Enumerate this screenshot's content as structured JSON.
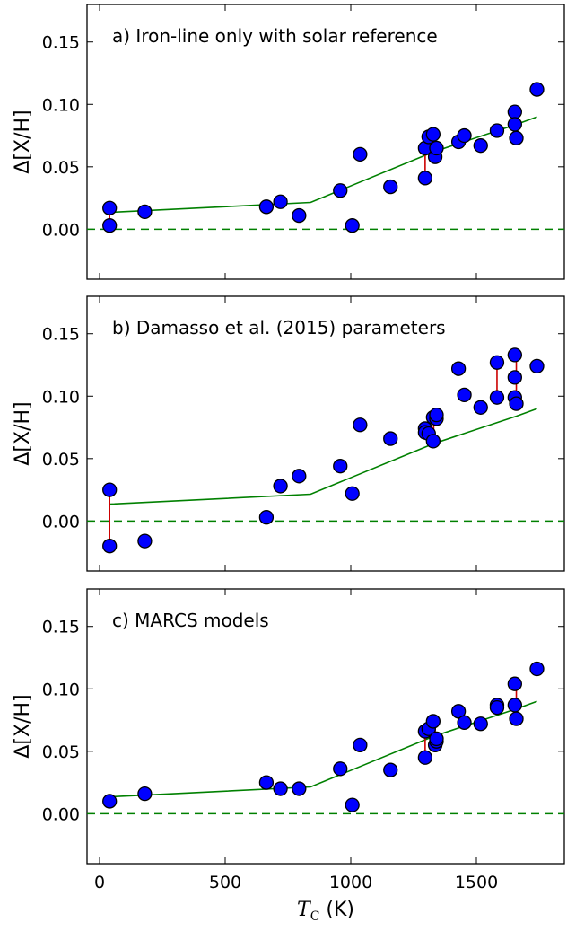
{
  "figure": {
    "xlabel_sym": "T",
    "xlabel_sub": "C",
    "xlabel_unit": " (K)",
    "ylabel": "Δ[X/H]"
  },
  "colors": {
    "point_fill": "#0000ff",
    "point_edge": "#000000",
    "fit_line": "#008000",
    "zero_line": "#008000",
    "connector": "#cc0000"
  },
  "chart_data": [
    {
      "type": "scatter",
      "title": "a) Iron-line only with solar reference",
      "xlabel": "",
      "ylabel": "Δ[X/H]",
      "xlim": [
        -50,
        1850
      ],
      "ylim": [
        -0.04,
        0.18
      ],
      "xticks": [
        0,
        500,
        1000,
        1500
      ],
      "yticks": [
        0.0,
        0.05,
        0.1,
        0.15
      ],
      "ytick_labels": [
        "0.00",
        "0.05",
        "0.10",
        "0.15"
      ],
      "grid": false,
      "points": [
        [
          40,
          0.017
        ],
        [
          40,
          0.003
        ],
        [
          180,
          0.014
        ],
        [
          664,
          0.018
        ],
        [
          720,
          0.022
        ],
        [
          794,
          0.011
        ],
        [
          958,
          0.031
        ],
        [
          1006,
          0.003
        ],
        [
          1037,
          0.06
        ],
        [
          1158,
          0.034
        ],
        [
          1296,
          0.065
        ],
        [
          1296,
          0.041
        ],
        [
          1310,
          0.074
        ],
        [
          1328,
          0.076
        ],
        [
          1336,
          0.058
        ],
        [
          1341,
          0.065
        ],
        [
          1429,
          0.07
        ],
        [
          1452,
          0.075
        ],
        [
          1517,
          0.067
        ],
        [
          1582,
          0.079
        ],
        [
          1653,
          0.094
        ],
        [
          1653,
          0.084
        ],
        [
          1659,
          0.073
        ],
        [
          1741,
          0.112
        ]
      ],
      "connectors": [
        [
          40,
          0.017,
          0.003
        ],
        [
          1296,
          0.065,
          0.041
        ],
        [
          1336,
          0.076,
          0.058
        ],
        [
          1659,
          0.094,
          0.073
        ]
      ],
      "fit": [
        [
          40,
          0.0135
        ],
        [
          840,
          0.0215
        ],
        [
          1330,
          0.062
        ],
        [
          1660,
          0.084
        ],
        [
          1741,
          0.09
        ]
      ],
      "reference_line": 0.0
    },
    {
      "type": "scatter",
      "title": "b) Damasso et al. (2015) parameters",
      "xlabel": "",
      "ylabel": "Δ[X/H]",
      "xlim": [
        -50,
        1850
      ],
      "ylim": [
        -0.04,
        0.18
      ],
      "xticks": [
        0,
        500,
        1000,
        1500
      ],
      "yticks": [
        0.0,
        0.05,
        0.1,
        0.15
      ],
      "ytick_labels": [
        "0.00",
        "0.05",
        "0.10",
        "0.15"
      ],
      "grid": false,
      "points": [
        [
          40,
          0.025
        ],
        [
          40,
          -0.02
        ],
        [
          180,
          -0.016
        ],
        [
          664,
          0.003
        ],
        [
          720,
          0.028
        ],
        [
          794,
          0.036
        ],
        [
          958,
          0.044
        ],
        [
          1006,
          0.022
        ],
        [
          1037,
          0.077
        ],
        [
          1158,
          0.066
        ],
        [
          1296,
          0.074
        ],
        [
          1296,
          0.071
        ],
        [
          1310,
          0.07
        ],
        [
          1328,
          0.083
        ],
        [
          1328,
          0.064
        ],
        [
          1341,
          0.082
        ],
        [
          1341,
          0.085
        ],
        [
          1429,
          0.122
        ],
        [
          1452,
          0.101
        ],
        [
          1517,
          0.091
        ],
        [
          1582,
          0.127
        ],
        [
          1582,
          0.099
        ],
        [
          1653,
          0.133
        ],
        [
          1653,
          0.115
        ],
        [
          1653,
          0.099
        ],
        [
          1659,
          0.094
        ],
        [
          1741,
          0.124
        ]
      ],
      "connectors": [
        [
          40,
          0.025,
          -0.02
        ],
        [
          1330,
          0.083,
          0.064
        ],
        [
          1582,
          0.127,
          0.099
        ],
        [
          1659,
          0.133,
          0.094
        ]
      ],
      "fit": [
        [
          40,
          0.0135
        ],
        [
          840,
          0.0215
        ],
        [
          1330,
          0.062
        ],
        [
          1660,
          0.084
        ],
        [
          1741,
          0.09
        ]
      ],
      "reference_line": 0.0
    },
    {
      "type": "scatter",
      "title": "c) MARCS models",
      "xlabel": "T_C (K)",
      "ylabel": "Δ[X/H]",
      "xlim": [
        -50,
        1850
      ],
      "ylim": [
        -0.04,
        0.18
      ],
      "xticks": [
        0,
        500,
        1000,
        1500
      ],
      "xtick_labels": [
        "0",
        "500",
        "1000",
        "1500"
      ],
      "yticks": [
        0.0,
        0.05,
        0.1,
        0.15
      ],
      "ytick_labels": [
        "0.00",
        "0.05",
        "0.10",
        "0.15"
      ],
      "grid": false,
      "points": [
        [
          40,
          0.01
        ],
        [
          180,
          0.016
        ],
        [
          664,
          0.025
        ],
        [
          720,
          0.02
        ],
        [
          794,
          0.02
        ],
        [
          958,
          0.036
        ],
        [
          1006,
          0.007
        ],
        [
          1037,
          0.055
        ],
        [
          1158,
          0.035
        ],
        [
          1296,
          0.066
        ],
        [
          1296,
          0.045
        ],
        [
          1310,
          0.068
        ],
        [
          1328,
          0.074
        ],
        [
          1336,
          0.055
        ],
        [
          1341,
          0.058
        ],
        [
          1341,
          0.06
        ],
        [
          1429,
          0.082
        ],
        [
          1452,
          0.073
        ],
        [
          1517,
          0.072
        ],
        [
          1582,
          0.087
        ],
        [
          1582,
          0.085
        ],
        [
          1653,
          0.104
        ],
        [
          1653,
          0.087
        ],
        [
          1659,
          0.076
        ],
        [
          1741,
          0.116
        ]
      ],
      "connectors": [
        [
          1296,
          0.066,
          0.045
        ],
        [
          1336,
          0.074,
          0.055
        ],
        [
          1659,
          0.104,
          0.076
        ]
      ],
      "fit": [
        [
          40,
          0.0135
        ],
        [
          840,
          0.0215
        ],
        [
          1330,
          0.062
        ],
        [
          1660,
          0.084
        ],
        [
          1741,
          0.09
        ]
      ],
      "reference_line": 0.0
    }
  ]
}
